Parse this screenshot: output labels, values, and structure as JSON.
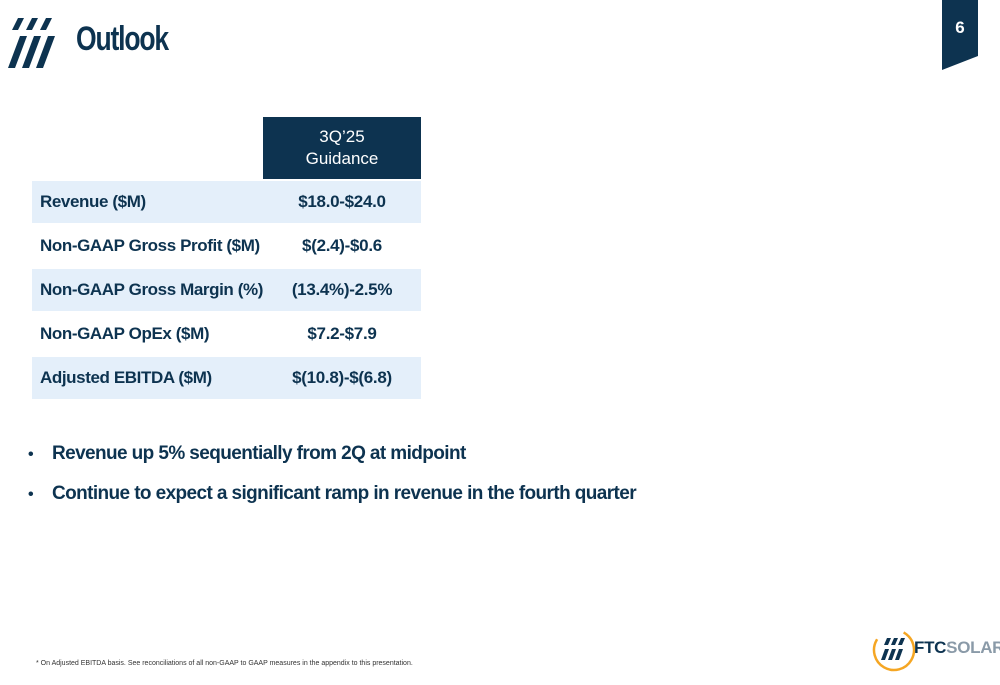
{
  "header": {
    "title": "Outlook",
    "page_number": "6",
    "logo_icon": "triple-slash-logo-icon"
  },
  "table": {
    "column_header_line1": "3Q’25",
    "column_header_line2": "Guidance",
    "rows": [
      {
        "label": "Revenue ($M)",
        "value": "$18.0-$24.0"
      },
      {
        "label": "Non-GAAP Gross Profit ($M)",
        "value": "$(2.4)-$0.6"
      },
      {
        "label": "Non-GAAP Gross Margin (%)",
        "value": "(13.4%)-2.5%"
      },
      {
        "label": "Non-GAAP OpEx ($M)",
        "value": "$7.2-$7.9"
      },
      {
        "label": "Adjusted EBITDA ($M)",
        "value": "$(10.8)-$(6.8)"
      }
    ]
  },
  "bullets": [
    "Revenue up 5% sequentially from 2Q at midpoint",
    "Continue to expect a significant ramp in revenue in the fourth quarter"
  ],
  "footnote": "* On Adjusted EBITDA basis. See reconciliations of all non-GAAP to GAAP measures in the appendix to this presentation.",
  "brand": {
    "name_bold": "FTC",
    "name_light": "SOLAR"
  },
  "colors": {
    "navy": "#0d3350",
    "row_shade": "#e4effa",
    "accent_orange": "#f5a623"
  }
}
